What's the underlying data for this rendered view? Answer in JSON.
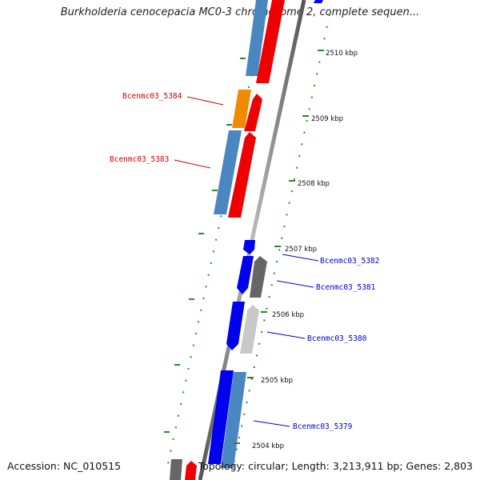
{
  "title": "Burkholderia cenocepacia MC0-3 chromosome 2, complete sequen...",
  "footer": {
    "accession": "Accession: NC_010515",
    "summary": "Topology: circular; Length: 3,213,911 bp; Genes: 2,803"
  },
  "ticks": [
    "2510 kbp",
    "2509 kbp",
    "2508 kbp",
    "2507 kbp",
    "2506 kbp",
    "2505 kbp",
    "2504 kbp"
  ],
  "gene_labels": [
    {
      "text": "Bcenmc03_5384",
      "color": "#cc0000"
    },
    {
      "text": "Bcenmc03_5383",
      "color": "#cc0000"
    },
    {
      "text": "Bcenmc03_5382",
      "color": "#0000cc"
    },
    {
      "text": "Bcenmc03_5381",
      "color": "#0000cc"
    },
    {
      "text": "Bcenmc03_5380",
      "color": "#0000cc"
    },
    {
      "text": "Bcenmc03_5379",
      "color": "#0000cc"
    }
  ],
  "colors": {
    "backbone": "#8a8a8a",
    "tick": "#2a8a2a",
    "gene_red": "#ee0000",
    "gene_blue": "#0000ee",
    "gene_steel": "#4a86c0",
    "gene_orange": "#f08a00",
    "gene_gray": "#666666",
    "gene_lightgray": "#c8c8c8"
  }
}
